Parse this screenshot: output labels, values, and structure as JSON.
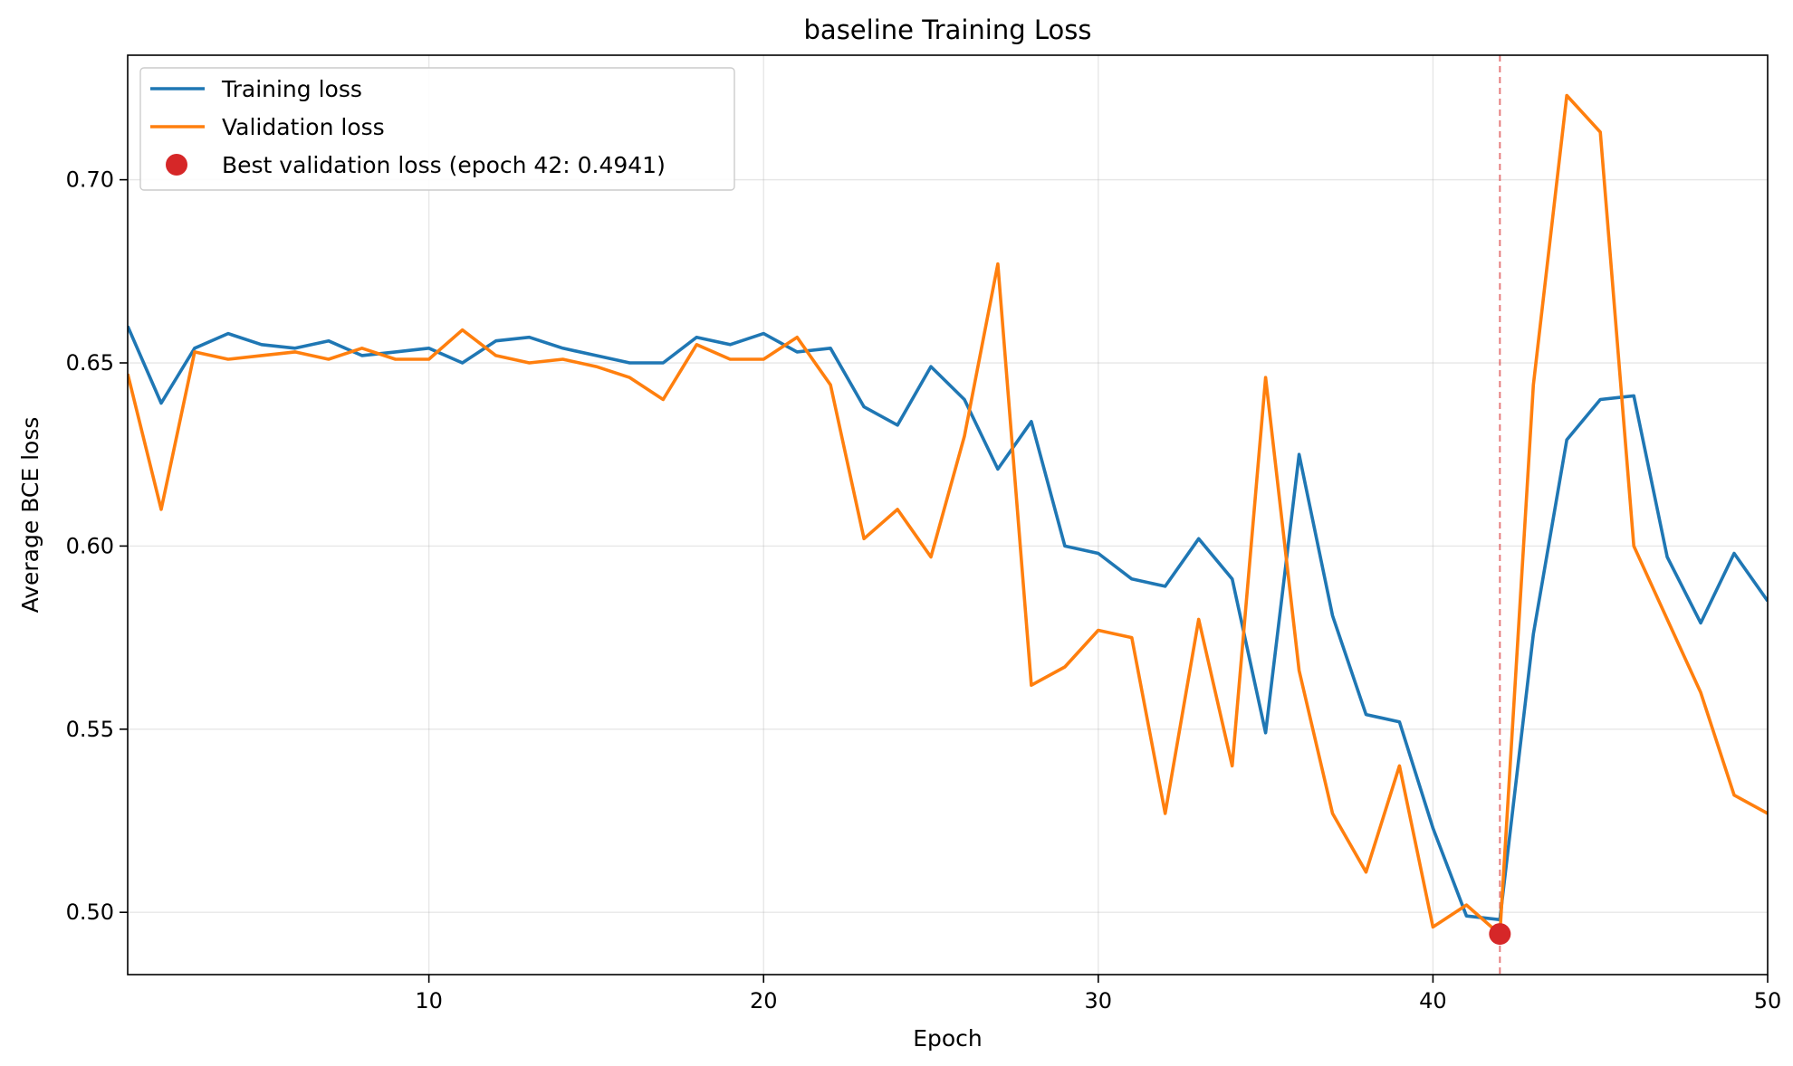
{
  "chart_data": {
    "type": "line",
    "title": "baseline Training Loss",
    "xlabel": "Epoch",
    "ylabel": "Average BCE loss",
    "xlim": [
      1,
      50
    ],
    "ylim": [
      0.483,
      0.734
    ],
    "xticks": [
      10,
      20,
      30,
      40,
      50
    ],
    "yticks": [
      0.5,
      0.55,
      0.6,
      0.65,
      0.7
    ],
    "xtick_labels": [
      "10",
      "20",
      "30",
      "40",
      "50"
    ],
    "ytick_labels": [
      "0.50",
      "0.55",
      "0.60",
      "0.65",
      "0.70"
    ],
    "grid": true,
    "legend_position": "top-left",
    "x": [
      1,
      2,
      3,
      4,
      5,
      6,
      7,
      8,
      9,
      10,
      11,
      12,
      13,
      14,
      15,
      16,
      17,
      18,
      19,
      20,
      21,
      22,
      23,
      24,
      25,
      26,
      27,
      28,
      29,
      30,
      31,
      32,
      33,
      34,
      35,
      36,
      37,
      38,
      39,
      40,
      41,
      42,
      43,
      44,
      45,
      46,
      47,
      48,
      49,
      50
    ],
    "series": [
      {
        "name": "Training loss",
        "color": "#1f77b4",
        "values": [
          0.66,
          0.639,
          0.654,
          0.658,
          0.655,
          0.654,
          0.656,
          0.652,
          0.653,
          0.654,
          0.65,
          0.656,
          0.657,
          0.654,
          0.652,
          0.65,
          0.65,
          0.657,
          0.655,
          0.658,
          0.653,
          0.654,
          0.638,
          0.633,
          0.649,
          0.64,
          0.621,
          0.634,
          0.6,
          0.598,
          0.591,
          0.589,
          0.602,
          0.591,
          0.549,
          0.625,
          0.581,
          0.554,
          0.552,
          0.523,
          0.499,
          0.498,
          0.576,
          0.629,
          0.64,
          0.641,
          0.597,
          0.579,
          0.598,
          0.585
        ]
      },
      {
        "name": "Validation loss",
        "color": "#ff7f0e",
        "values": [
          0.647,
          0.61,
          0.653,
          0.651,
          0.652,
          0.653,
          0.651,
          0.654,
          0.651,
          0.651,
          0.659,
          0.652,
          0.65,
          0.651,
          0.649,
          0.646,
          0.64,
          0.655,
          0.651,
          0.651,
          0.657,
          0.644,
          0.602,
          0.61,
          0.597,
          0.63,
          0.677,
          0.562,
          0.567,
          0.577,
          0.575,
          0.527,
          0.58,
          0.54,
          0.646,
          0.566,
          0.527,
          0.511,
          0.54,
          0.496,
          0.502,
          0.494,
          0.644,
          0.723,
          0.713,
          0.6,
          0.58,
          0.56,
          0.532,
          0.527
        ]
      }
    ],
    "best_point": {
      "label": "Best validation loss (epoch 42: 0.4941)",
      "epoch": 42,
      "value": 0.4941,
      "color": "#d62728"
    },
    "vline": {
      "x": 42,
      "color": "#d62728"
    }
  }
}
